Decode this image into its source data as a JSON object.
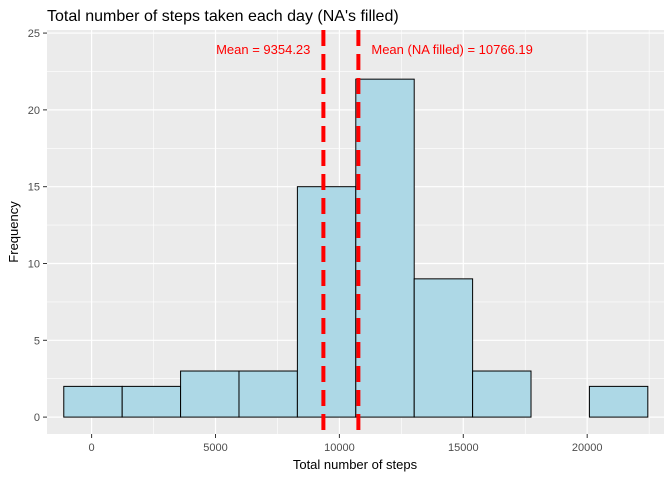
{
  "chart_data": {
    "type": "bar",
    "title": "Total number of steps taken each day (NA's filled)",
    "xlabel": "Total number of steps",
    "ylabel": "Frequency",
    "xlim": [
      -1800,
      23100
    ],
    "ylim": [
      -1.1,
      25.2
    ],
    "xticks": [
      0,
      5000,
      10000,
      15000,
      20000
    ],
    "yticks": [
      0,
      5,
      10,
      15,
      20,
      25
    ],
    "grid": true,
    "bin_width": 2357,
    "bins": [
      {
        "start": -1123,
        "end": 1234,
        "count": 2
      },
      {
        "start": 1234,
        "end": 3591,
        "count": 2
      },
      {
        "start": 3591,
        "end": 5948,
        "count": 3
      },
      {
        "start": 5948,
        "end": 8305,
        "count": 3
      },
      {
        "start": 8305,
        "end": 10662,
        "count": 15
      },
      {
        "start": 10662,
        "end": 13019,
        "count": 22
      },
      {
        "start": 13019,
        "end": 15376,
        "count": 9
      },
      {
        "start": 15376,
        "end": 17733,
        "count": 3
      },
      {
        "start": 17733,
        "end": 20090,
        "count": 0
      },
      {
        "start": 20090,
        "end": 22447,
        "count": 2
      }
    ],
    "bar_fill": "#add8e6",
    "bar_stroke": "#000000",
    "mean_lines": [
      {
        "x": 9354.23,
        "label": "Mean = 9354.23",
        "anchor": "end",
        "color": "#ff0000"
      },
      {
        "x": 10766.19,
        "label": "Mean (NA filled) = 10766.19",
        "anchor": "start",
        "color": "#ff0000"
      }
    ],
    "panel_background": "#ebebeb",
    "grid_color": "#ffffff"
  }
}
